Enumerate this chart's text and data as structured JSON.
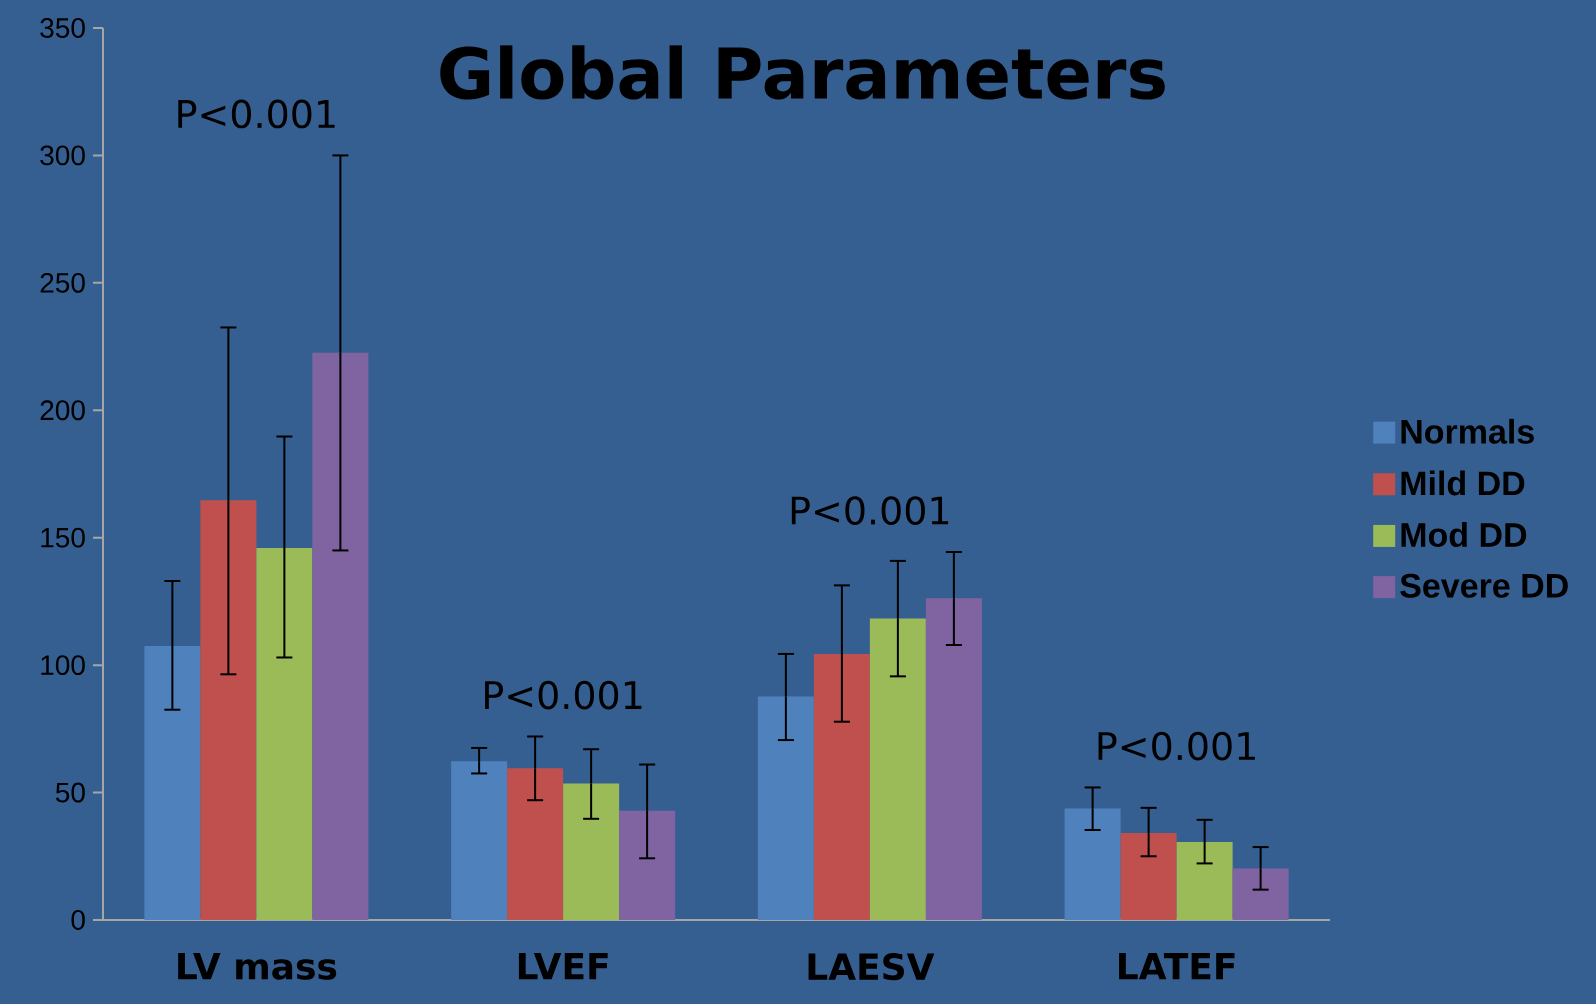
{
  "chart_data": {
    "type": "bar",
    "title": "Global Parameters",
    "categories": [
      "LV mass",
      "LVEF",
      "LAESV",
      "LATEF"
    ],
    "series": [
      {
        "name": "Normals",
        "color": "#4f81bd",
        "values": [
          107.5,
          62.3,
          87.7,
          43.7
        ],
        "errors": [
          [
            82.5,
            133
          ],
          [
            57.5,
            67.5
          ],
          [
            70.6,
            104.4
          ],
          [
            35.3,
            52
          ]
        ]
      },
      {
        "name": "Mild DD",
        "color": "#c0504d",
        "values": [
          164.7,
          59.5,
          104.4,
          34.1
        ],
        "errors": [
          [
            96.4,
            232.5
          ],
          [
            47,
            72
          ],
          [
            77.8,
            131.3
          ],
          [
            25,
            44
          ]
        ]
      },
      {
        "name": "Mod DD",
        "color": "#9bbb59",
        "values": [
          146,
          53.6,
          118.3,
          30.6
        ],
        "errors": [
          [
            103,
            189.7
          ],
          [
            39.7,
            67
          ],
          [
            95.6,
            140.9
          ],
          [
            22.2,
            39.3
          ]
        ]
      },
      {
        "name": "Severe DD",
        "color": "#8064a2",
        "values": [
          222.6,
          42.9,
          126.2,
          20.2
        ],
        "errors": [
          [
            145,
            300
          ],
          [
            24.2,
            61
          ],
          [
            107.9,
            144.4
          ],
          [
            11.9,
            28.6
          ]
        ]
      }
    ],
    "ylim": [
      0,
      350
    ],
    "yticks": [
      0,
      50,
      100,
      150,
      200,
      250,
      300,
      350
    ],
    "legend": "right",
    "grid": false,
    "annotations": [
      "P<0.001",
      "P<0.001",
      "P<0.001",
      "P<0.001"
    ]
  }
}
